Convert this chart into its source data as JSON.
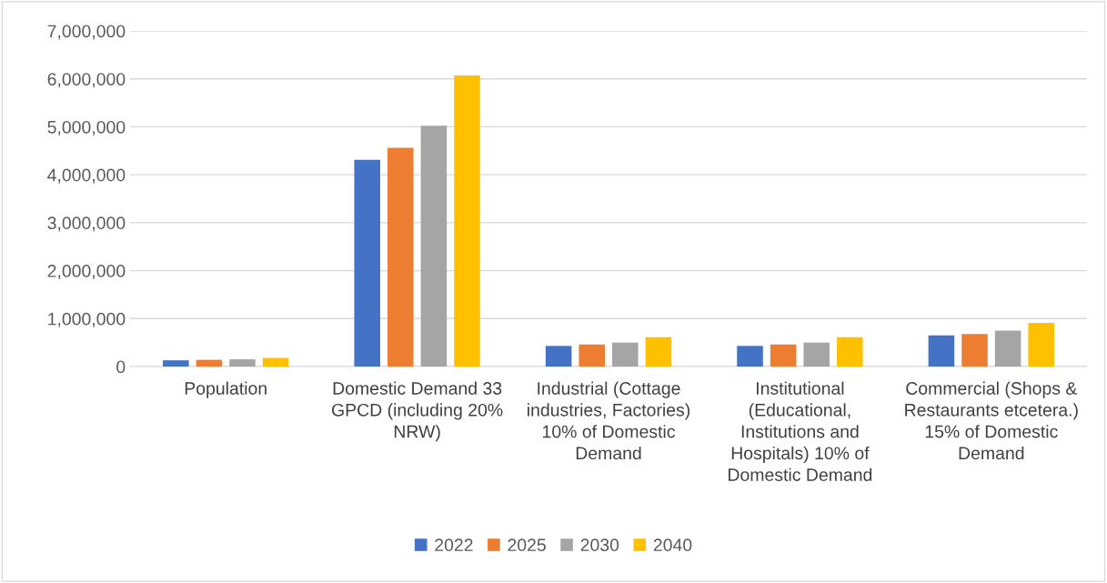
{
  "chart_data": {
    "type": "bar",
    "categories": [
      "Population",
      "Domestic Demand 33 GPCD (including 20% NRW)",
      "Industrial (Cottage industries, Factories) 10% of Domestic Demand",
      "Institutional (Educational, Institutions and Hospitals) 10% of Domestic Demand",
      "Commercial (Shops & Restaurants etcetera.) 15% of Domestic Demand"
    ],
    "series": [
      {
        "name": "2022",
        "color": "#4472c4",
        "values": [
          130000,
          4310000,
          430000,
          430000,
          650000
        ]
      },
      {
        "name": "2025",
        "color": "#ed7d31",
        "values": [
          140000,
          4560000,
          460000,
          460000,
          680000
        ]
      },
      {
        "name": "2030",
        "color": "#a5a5a5",
        "values": [
          150000,
          5020000,
          500000,
          500000,
          750000
        ]
      },
      {
        "name": "2040",
        "color": "#ffc000",
        "values": [
          180000,
          6070000,
          610000,
          610000,
          910000
        ]
      }
    ],
    "ylim": [
      0,
      7000000
    ],
    "yticks": [
      {
        "value": 0,
        "label": "0"
      },
      {
        "value": 1000000,
        "label": "1,000,000"
      },
      {
        "value": 2000000,
        "label": "2,000,000"
      },
      {
        "value": 3000000,
        "label": "3,000,000"
      },
      {
        "value": 4000000,
        "label": "4,000,000"
      },
      {
        "value": 5000000,
        "label": "5,000,000"
      },
      {
        "value": 6000000,
        "label": "6,000,000"
      },
      {
        "value": 7000000,
        "label": "7,000,000"
      }
    ],
    "grid": "y",
    "legend": "bottom"
  }
}
